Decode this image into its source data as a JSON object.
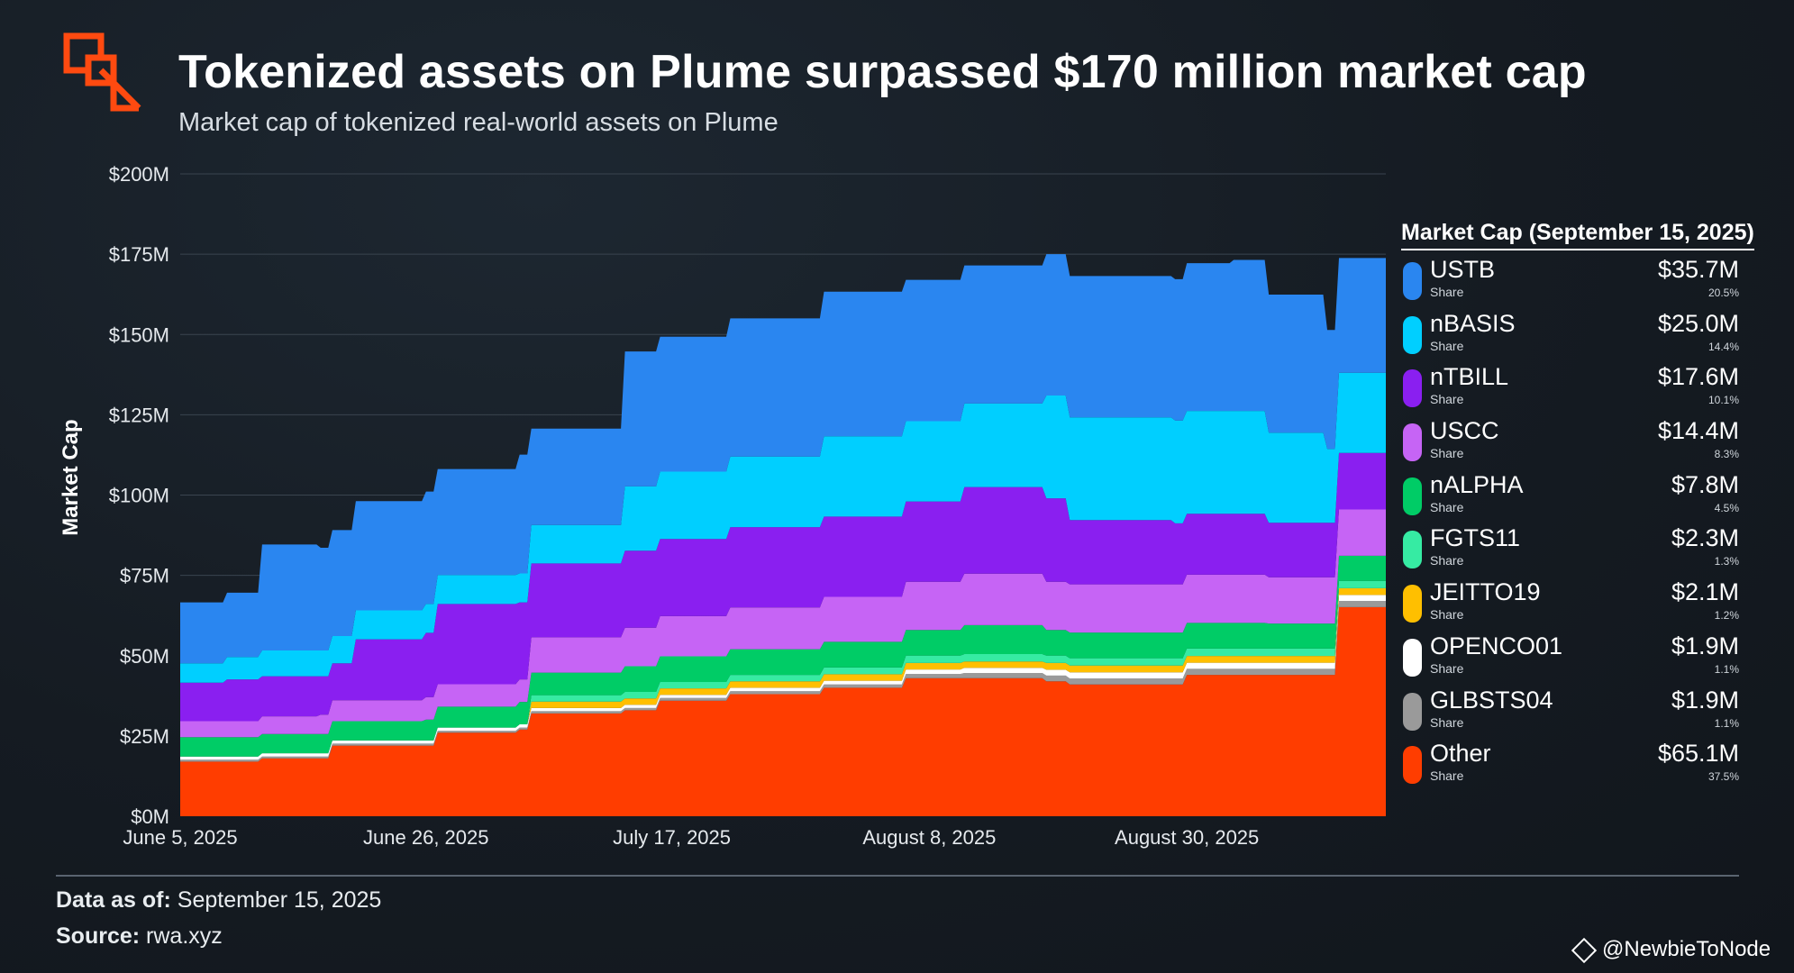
{
  "header": {
    "title": "Tokenized assets on Plume surpassed $170 million market cap",
    "subtitle": "Market cap of tokenized real-world assets on Plume"
  },
  "legend": {
    "title": "Market Cap (September 15, 2025)",
    "share_label": "Share",
    "items": [
      {
        "name": "USTB",
        "value": "$35.7M",
        "share": "20.5%",
        "color": "#2a86f0"
      },
      {
        "name": "nBASIS",
        "value": "$25.0M",
        "share": "14.4%",
        "color": "#00cfff"
      },
      {
        "name": "nTBILL",
        "value": "$17.6M",
        "share": "10.1%",
        "color": "#8a1ff0"
      },
      {
        "name": "USCC",
        "value": "$14.4M",
        "share": "8.3%",
        "color": "#c664f5"
      },
      {
        "name": "nALPHA",
        "value": "$7.8M",
        "share": "4.5%",
        "color": "#00cc66"
      },
      {
        "name": "FGTS11",
        "value": "$2.3M",
        "share": "1.3%",
        "color": "#36eba3"
      },
      {
        "name": "JEITTO19",
        "value": "$2.1M",
        "share": "1.2%",
        "color": "#ffbf00"
      },
      {
        "name": "OPENCO01",
        "value": "$1.9M",
        "share": "1.1%",
        "color": "#ffffff"
      },
      {
        "name": "GLBSTS04",
        "value": "$1.9M",
        "share": "1.1%",
        "color": "#9a9a9a"
      },
      {
        "name": "Other",
        "value": "$65.1M",
        "share": "37.5%",
        "color": "#ff3d00"
      }
    ]
  },
  "footer": {
    "data_as_of_label": "Data as of:",
    "data_as_of_value": "September 15, 2025",
    "source_label": "Source:",
    "source_value": "rwa.xyz"
  },
  "watermark": "@NewbieToNode",
  "chart_data": {
    "type": "area",
    "stacked": true,
    "ylabel": "Market Cap",
    "ylim": [
      0,
      200
    ],
    "y_ticks": [
      "$0M",
      "$25M",
      "$50M",
      "$75M",
      "$100M",
      "$125M",
      "$150M",
      "$175M",
      "$200M"
    ],
    "x_tick_labels": [
      "June 5, 2025",
      "June 26, 2025",
      "July 17, 2025",
      "August 8, 2025",
      "August 30, 2025"
    ],
    "x_tick_days": [
      0,
      21,
      42,
      64,
      86
    ],
    "x_max_days": 103,
    "grid": true,
    "legend_position": "right",
    "unit": "$M",
    "series_order_bottom_to_top": [
      "Other",
      "GLBSTS04",
      "OPENCO01",
      "JEITTO19",
      "FGTS11",
      "nALPHA",
      "USCC",
      "nTBILL",
      "nBASIS",
      "USTB"
    ],
    "keyframes": [
      {
        "day": 0,
        "Other": 17.0,
        "GLBSTS04": 0.6,
        "OPENCO01": 1.0,
        "JEITTO19": 0.0,
        "FGTS11": 0.0,
        "nALPHA": 6.0,
        "USCC": 5.0,
        "nTBILL": 12.0,
        "nBASIS": 6.0,
        "USTB": 19.0
      },
      {
        "day": 4,
        "Other": 17.0,
        "GLBSTS04": 0.6,
        "OPENCO01": 1.0,
        "JEITTO19": 0.0,
        "FGTS11": 0.0,
        "nALPHA": 6.0,
        "USCC": 5.0,
        "nTBILL": 13.0,
        "nBASIS": 7.0,
        "USTB": 20.0
      },
      {
        "day": 7,
        "Other": 18.0,
        "GLBSTS04": 0.6,
        "OPENCO01": 1.0,
        "JEITTO19": 0.0,
        "FGTS11": 0.0,
        "nALPHA": 6.0,
        "USCC": 5.5,
        "nTBILL": 12.5,
        "nBASIS": 8.0,
        "USTB": 33.0
      },
      {
        "day": 12,
        "Other": 18.0,
        "GLBSTS04": 0.6,
        "OPENCO01": 1.0,
        "JEITTO19": 0.0,
        "FGTS11": 0.0,
        "nALPHA": 6.0,
        "USCC": 6.0,
        "nTBILL": 12.0,
        "nBASIS": 8.0,
        "USTB": 32.0
      },
      {
        "day": 13,
        "Other": 22.0,
        "GLBSTS04": 0.6,
        "OPENCO01": 1.0,
        "JEITTO19": 0.0,
        "FGTS11": 0.0,
        "nALPHA": 6.0,
        "USCC": 6.5,
        "nTBILL": 11.5,
        "nBASIS": 8.5,
        "USTB": 33.0
      },
      {
        "day": 15,
        "Other": 22.0,
        "GLBSTS04": 0.6,
        "OPENCO01": 1.0,
        "JEITTO19": 0.0,
        "FGTS11": 0.0,
        "nALPHA": 6.0,
        "USCC": 6.5,
        "nTBILL": 19.0,
        "nBASIS": 9.0,
        "USTB": 34.0
      },
      {
        "day": 21,
        "Other": 22.0,
        "GLBSTS04": 0.6,
        "OPENCO01": 1.0,
        "JEITTO19": 0.0,
        "FGTS11": 0.0,
        "nALPHA": 6.5,
        "USCC": 7.0,
        "nTBILL": 20.0,
        "nBASIS": 9.0,
        "USTB": 35.0
      },
      {
        "day": 22,
        "Other": 26.0,
        "GLBSTS04": 0.6,
        "OPENCO01": 1.0,
        "JEITTO19": 0.0,
        "FGTS11": 0.0,
        "nALPHA": 6.5,
        "USCC": 7.0,
        "nTBILL": 25.0,
        "nBASIS": 9.0,
        "USTB": 33.0
      },
      {
        "day": 29,
        "Other": 27.0,
        "GLBSTS04": 0.6,
        "OPENCO01": 1.0,
        "JEITTO19": 0.0,
        "FGTS11": 0.0,
        "nALPHA": 7.0,
        "USCC": 7.0,
        "nTBILL": 24.0,
        "nBASIS": 9.0,
        "USTB": 37.0
      },
      {
        "day": 30,
        "Other": 32.0,
        "GLBSTS04": 0.7,
        "OPENCO01": 1.0,
        "JEITTO19": 2.0,
        "FGTS11": 2.0,
        "nALPHA": 7.0,
        "USCC": 11.0,
        "nTBILL": 23.0,
        "nBASIS": 12.0,
        "USTB": 30.0
      },
      {
        "day": 38,
        "Other": 33.0,
        "GLBSTS04": 0.7,
        "OPENCO01": 1.0,
        "JEITTO19": 2.0,
        "FGTS11": 2.0,
        "nALPHA": 8.0,
        "USCC": 12.0,
        "nTBILL": 24.0,
        "nBASIS": 20.0,
        "USTB": 42.0
      },
      {
        "day": 41,
        "Other": 36.0,
        "GLBSTS04": 0.8,
        "OPENCO01": 1.0,
        "JEITTO19": 2.0,
        "FGTS11": 2.0,
        "nALPHA": 8.0,
        "USCC": 12.5,
        "nTBILL": 24.0,
        "nBASIS": 21.0,
        "USTB": 42.0
      },
      {
        "day": 47,
        "Other": 38.0,
        "GLBSTS04": 0.9,
        "OPENCO01": 1.1,
        "JEITTO19": 2.0,
        "FGTS11": 2.0,
        "nALPHA": 8.0,
        "USCC": 13.0,
        "nTBILL": 25.0,
        "nBASIS": 22.0,
        "USTB": 43.0
      },
      {
        "day": 55,
        "Other": 40.0,
        "GLBSTS04": 1.0,
        "OPENCO01": 1.2,
        "JEITTO19": 2.0,
        "FGTS11": 2.1,
        "nALPHA": 8.0,
        "USCC": 14.0,
        "nTBILL": 25.0,
        "nBASIS": 25.0,
        "USTB": 45.0
      },
      {
        "day": 62,
        "Other": 43.0,
        "GLBSTS04": 1.3,
        "OPENCO01": 1.4,
        "JEITTO19": 2.0,
        "FGTS11": 2.3,
        "nALPHA": 8.0,
        "USCC": 15.0,
        "nTBILL": 25.0,
        "nBASIS": 25.0,
        "USTB": 44.0
      },
      {
        "day": 67,
        "Other": 43.0,
        "GLBSTS04": 1.6,
        "OPENCO01": 1.6,
        "JEITTO19": 2.0,
        "FGTS11": 2.3,
        "nALPHA": 9.0,
        "USCC": 16.0,
        "nTBILL": 27.0,
        "nBASIS": 26.0,
        "USTB": 43.0
      },
      {
        "day": 74,
        "Other": 42.0,
        "GLBSTS04": 1.8,
        "OPENCO01": 1.8,
        "JEITTO19": 2.1,
        "FGTS11": 2.3,
        "nALPHA": 8.0,
        "USCC": 15.0,
        "nTBILL": 26.0,
        "nBASIS": 32.0,
        "USTB": 44.0
      },
      {
        "day": 76,
        "Other": 41.0,
        "GLBSTS04": 1.9,
        "OPENCO01": 1.9,
        "JEITTO19": 2.1,
        "FGTS11": 2.3,
        "nALPHA": 8.0,
        "USCC": 15.0,
        "nTBILL": 20.0,
        "nBASIS": 32.0,
        "USTB": 44.0
      },
      {
        "day": 85,
        "Other": 41.0,
        "GLBSTS04": 1.9,
        "OPENCO01": 1.9,
        "JEITTO19": 2.1,
        "FGTS11": 2.3,
        "nALPHA": 8.0,
        "USCC": 15.0,
        "nTBILL": 19.0,
        "nBASIS": 32.0,
        "USTB": 44.0
      },
      {
        "day": 86,
        "Other": 44.0,
        "GLBSTS04": 1.9,
        "OPENCO01": 1.9,
        "JEITTO19": 2.1,
        "FGTS11": 2.3,
        "nALPHA": 8.0,
        "USCC": 15.0,
        "nTBILL": 19.0,
        "nBASIS": 32.0,
        "USTB": 46.0
      },
      {
        "day": 90,
        "Other": 44.0,
        "GLBSTS04": 1.9,
        "OPENCO01": 1.9,
        "JEITTO19": 2.1,
        "FGTS11": 2.3,
        "nALPHA": 8.0,
        "USCC": 15.0,
        "nTBILL": 19.0,
        "nBASIS": 32.0,
        "USTB": 47.0
      },
      {
        "day": 93,
        "Other": 44.0,
        "GLBSTS04": 1.9,
        "OPENCO01": 1.9,
        "JEITTO19": 2.1,
        "FGTS11": 2.3,
        "nALPHA": 7.8,
        "USCC": 14.4,
        "nTBILL": 17.0,
        "nBASIS": 28.0,
        "USTB": 43.0
      },
      {
        "day": 98,
        "Other": 44.0,
        "GLBSTS04": 1.9,
        "OPENCO01": 1.9,
        "JEITTO19": 2.1,
        "FGTS11": 2.3,
        "nALPHA": 7.8,
        "USCC": 14.4,
        "nTBILL": 17.0,
        "nBASIS": 23.0,
        "USTB": 37.0
      },
      {
        "day": 99,
        "Other": 65.1,
        "GLBSTS04": 1.9,
        "OPENCO01": 1.9,
        "JEITTO19": 2.1,
        "FGTS11": 2.3,
        "nALPHA": 7.8,
        "USCC": 14.4,
        "nTBILL": 17.6,
        "nBASIS": 25.0,
        "USTB": 35.7
      },
      {
        "day": 103,
        "Other": 65.1,
        "GLBSTS04": 1.9,
        "OPENCO01": 1.9,
        "JEITTO19": 2.1,
        "FGTS11": 2.3,
        "nALPHA": 7.8,
        "USCC": 14.4,
        "nTBILL": 17.6,
        "nBASIS": 25.0,
        "USTB": 35.7
      }
    ]
  }
}
